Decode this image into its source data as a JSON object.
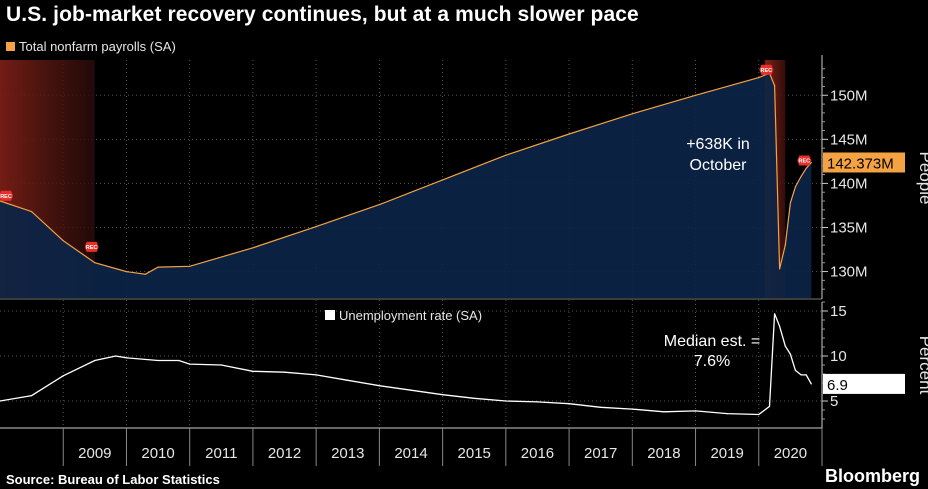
{
  "title": "U.S. job-market recovery continues, but at a much slower pace",
  "source": "Source: Bureau of Labor Statistics",
  "brand": "Bloomberg",
  "colors": {
    "payrolls_line": "#f5a242",
    "payrolls_fill": "#0b2447",
    "recession_shade": "#6e1a14",
    "recession_marker": "#e8302a",
    "unemployment_line": "#ffffff",
    "grid": "#555555",
    "background": "#000000"
  },
  "chart_data": [
    {
      "type": "area",
      "legend": "Total nonfarm payrolls (SA)",
      "ylabel": "People",
      "ylim": [
        127,
        154
      ],
      "yticks": [
        130,
        135,
        140,
        145,
        150
      ],
      "ytick_labels": [
        "130M",
        "135M",
        "140M",
        "145M",
        "150M"
      ],
      "last_value_label": "142.373M",
      "annotation": "+638K in\nOctober",
      "recession_label": "REC",
      "recessions": [
        [
          2007.95,
          2009.5
        ],
        [
          2020.1,
          2020.42
        ]
      ],
      "x": [
        2008.0,
        2008.5,
        2009.0,
        2009.5,
        2010.0,
        2010.3,
        2010.5,
        2011.0,
        2012.0,
        2013.0,
        2014.0,
        2015.0,
        2016.0,
        2017.0,
        2018.0,
        2019.0,
        2020.0,
        2020.17,
        2020.25,
        2020.33,
        2020.42,
        2020.5,
        2020.58,
        2020.67,
        2020.75,
        2020.83
      ],
      "y": [
        138.0,
        136.8,
        133.5,
        131.0,
        130.0,
        129.7,
        130.5,
        130.6,
        132.7,
        135.1,
        137.6,
        140.4,
        143.2,
        145.6,
        147.9,
        150.0,
        152.0,
        152.5,
        151.1,
        130.3,
        133.0,
        137.8,
        139.6,
        140.8,
        141.7,
        142.373
      ]
    },
    {
      "type": "line",
      "legend": "Unemployment rate (SA)",
      "ylabel": "Percent",
      "ylim": [
        2,
        16
      ],
      "yticks": [
        5,
        10,
        15
      ],
      "ytick_labels": [
        "5",
        "10",
        "15"
      ],
      "last_value_label": "6.9",
      "annotation": "Median est. =\n7.6%",
      "x": [
        2008.0,
        2008.5,
        2009.0,
        2009.5,
        2009.83,
        2010.0,
        2010.5,
        2010.83,
        2011.0,
        2011.5,
        2012.0,
        2012.5,
        2013.0,
        2013.5,
        2014.0,
        2014.5,
        2015.0,
        2015.5,
        2016.0,
        2016.5,
        2017.0,
        2017.5,
        2018.0,
        2018.5,
        2019.0,
        2019.5,
        2020.0,
        2020.17,
        2020.25,
        2020.33,
        2020.42,
        2020.5,
        2020.58,
        2020.67,
        2020.75,
        2020.83
      ],
      "y": [
        5.0,
        5.6,
        7.8,
        9.5,
        10.0,
        9.8,
        9.5,
        9.5,
        9.1,
        9.0,
        8.3,
        8.2,
        7.9,
        7.3,
        6.7,
        6.2,
        5.7,
        5.3,
        5.0,
        4.9,
        4.7,
        4.3,
        4.1,
        3.8,
        3.9,
        3.6,
        3.5,
        4.4,
        14.7,
        13.3,
        11.1,
        10.2,
        8.4,
        7.9,
        7.9,
        6.9
      ]
    },
    {
      "type": "axis",
      "x_tick_labels": [
        "2009",
        "2010",
        "2011",
        "2012",
        "2013",
        "2014",
        "2015",
        "2016",
        "2017",
        "2018",
        "2019",
        "2020"
      ],
      "x_tick_positions": [
        2009.5,
        2010.5,
        2011.5,
        2012.5,
        2013.5,
        2014.5,
        2015.5,
        2016.5,
        2017.5,
        2018.5,
        2019.5,
        2020.5
      ],
      "xlim": [
        2008.0,
        2021.0
      ]
    }
  ]
}
